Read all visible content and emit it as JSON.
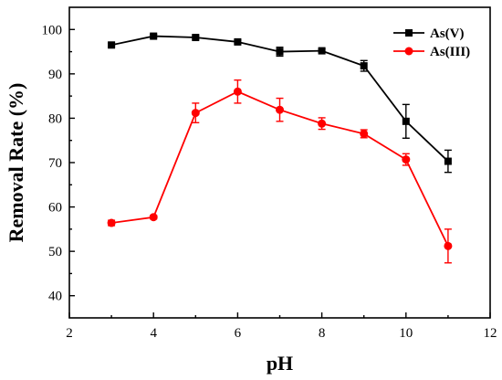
{
  "chart_data": {
    "type": "line",
    "xlabel": "pH",
    "ylabel": "Removal Rate (%)",
    "xlim": [
      2,
      12
    ],
    "ylim": [
      35,
      105
    ],
    "x_ticks": [
      2,
      4,
      6,
      8,
      10,
      12
    ],
    "y_ticks": [
      40,
      50,
      60,
      70,
      80,
      90,
      100
    ],
    "legend_position": "top-right",
    "series": [
      {
        "name": "As(V)",
        "color": "#000000",
        "marker": "square",
        "x": [
          3,
          4,
          5,
          6,
          7,
          8,
          9,
          10,
          11
        ],
        "y": [
          96.5,
          98.5,
          98.2,
          97.2,
          95.0,
          95.2,
          91.8,
          79.3,
          70.3
        ],
        "err": [
          0.4,
          0.4,
          0.4,
          0.4,
          1.0,
          0.4,
          1.2,
          3.8,
          2.5
        ]
      },
      {
        "name": "As(III)",
        "color": "#ff0000",
        "marker": "circle",
        "x": [
          3,
          4,
          5,
          6,
          7,
          8,
          9,
          10,
          11
        ],
        "y": [
          56.4,
          57.7,
          81.2,
          86.0,
          81.9,
          78.8,
          76.5,
          70.7,
          51.2
        ],
        "err": [
          0.6,
          0.4,
          2.2,
          2.6,
          2.6,
          1.3,
          0.9,
          1.3,
          3.8
        ]
      }
    ]
  }
}
